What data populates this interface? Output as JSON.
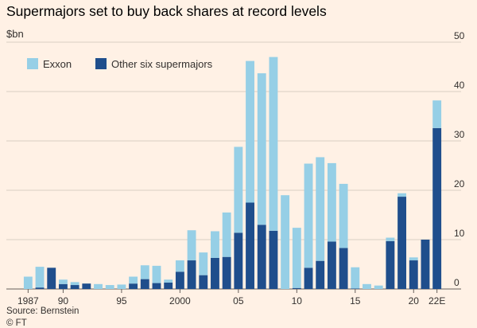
{
  "title": "Supermajors set to buy back shares at record levels",
  "unit_label": "$bn",
  "source": "Source: Bernstein",
  "copyright": "© FT",
  "colors": {
    "background": "#fff1e5",
    "exxon": "#96cfe6",
    "others": "#1f4e8c",
    "gridline": "#d9cec3",
    "text": "#33302e"
  },
  "chart_data": {
    "type": "bar",
    "stacked": true,
    "y_axis_position": "right",
    "ylim": [
      0,
      50
    ],
    "y_ticks": [
      0,
      10,
      20,
      30,
      40,
      50
    ],
    "legend_position": "top-left",
    "categories": [
      "1987",
      "1988",
      "1989",
      "1990",
      "1991",
      "1992",
      "1993",
      "1994",
      "1995",
      "1996",
      "1997",
      "1998",
      "1999",
      "2000",
      "2001",
      "2002",
      "2003",
      "2004",
      "2005",
      "2006",
      "2007",
      "2008",
      "2009",
      "2010",
      "2011",
      "2012",
      "2013",
      "2014",
      "2015",
      "2016",
      "2017",
      "2018",
      "2019",
      "2020",
      "2021",
      "2022E"
    ],
    "x_tick_labels": [
      {
        "index": 0,
        "label": "1987"
      },
      {
        "index": 3,
        "label": "90"
      },
      {
        "index": 8,
        "label": "95"
      },
      {
        "index": 13,
        "label": "2000"
      },
      {
        "index": 18,
        "label": "05"
      },
      {
        "index": 23,
        "label": "10"
      },
      {
        "index": 28,
        "label": "15"
      },
      {
        "index": 33,
        "label": "20"
      },
      {
        "index": 35,
        "label": "22E"
      }
    ],
    "series": [
      {
        "name": "Other six supermajors",
        "color": "#1f4e8c",
        "values": [
          0,
          0.3,
          4.3,
          1.0,
          0.8,
          1.1,
          0,
          0,
          0,
          1.1,
          2.0,
          1.2,
          1.3,
          3.5,
          5.8,
          2.8,
          6.3,
          6.5,
          11.4,
          17.5,
          13.0,
          11.8,
          0,
          0.2,
          4.3,
          5.7,
          9.6,
          8.3,
          0.1,
          0,
          0,
          9.7,
          18.7,
          5.8,
          10.0,
          32.6
        ]
      },
      {
        "name": "Exxon",
        "color": "#96cfe6",
        "values": [
          2.5,
          4.2,
          0,
          0.9,
          0.6,
          0,
          1.0,
          0.8,
          0.9,
          1.4,
          2.8,
          3.5,
          0.6,
          2.3,
          6.1,
          4.6,
          5.4,
          9.0,
          17.4,
          28.7,
          30.7,
          35.2,
          19.0,
          12.2,
          21.1,
          21.0,
          15.9,
          13.0,
          4.3,
          1.0,
          0.7,
          0.7,
          0.7,
          0.6,
          0,
          5.6
        ]
      }
    ]
  }
}
